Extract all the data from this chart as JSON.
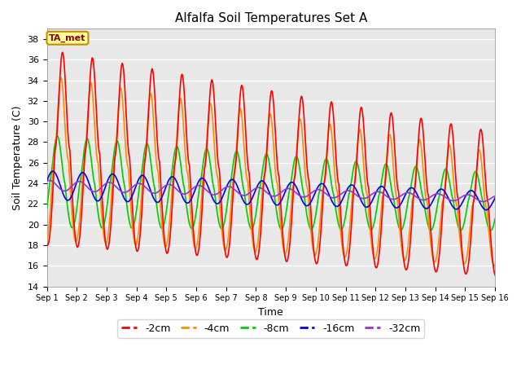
{
  "title": "Alfalfa Soil Temperatures Set A",
  "xlabel": "Time",
  "ylabel": "Soil Temperature (C)",
  "ylim": [
    14,
    39
  ],
  "xlim": [
    0,
    15
  ],
  "yticks": [
    14,
    16,
    18,
    20,
    22,
    24,
    26,
    28,
    30,
    32,
    34,
    36,
    38
  ],
  "xtick_labels": [
    "Sep 1",
    "Sep 2",
    "Sep 3",
    "Sep 4",
    "Sep 5",
    "Sep 6",
    "Sep 7",
    "Sep 8",
    "Sep 9",
    "Sep 10",
    "Sep 11",
    "Sep 12",
    "Sep 13",
    "Sep 14",
    "Sep 15",
    "Sep 16"
  ],
  "series": {
    "-2cm": {
      "color": "#FF0000",
      "lw": 1.2
    },
    "-4cm": {
      "color": "#FF8C00",
      "lw": 1.2
    },
    "-8cm": {
      "color": "#00CC00",
      "lw": 1.2
    },
    "-16cm": {
      "color": "#0000EE",
      "lw": 1.2
    },
    "-32cm": {
      "color": "#9933CC",
      "lw": 1.2
    }
  },
  "bg_color": "#E8E8E8",
  "annotation_text": "TA_met",
  "annotation_bg": "#FFFF99",
  "annotation_border": "#CC8800",
  "grid_color": "#FFFFFF",
  "grid_lw": 1.0
}
